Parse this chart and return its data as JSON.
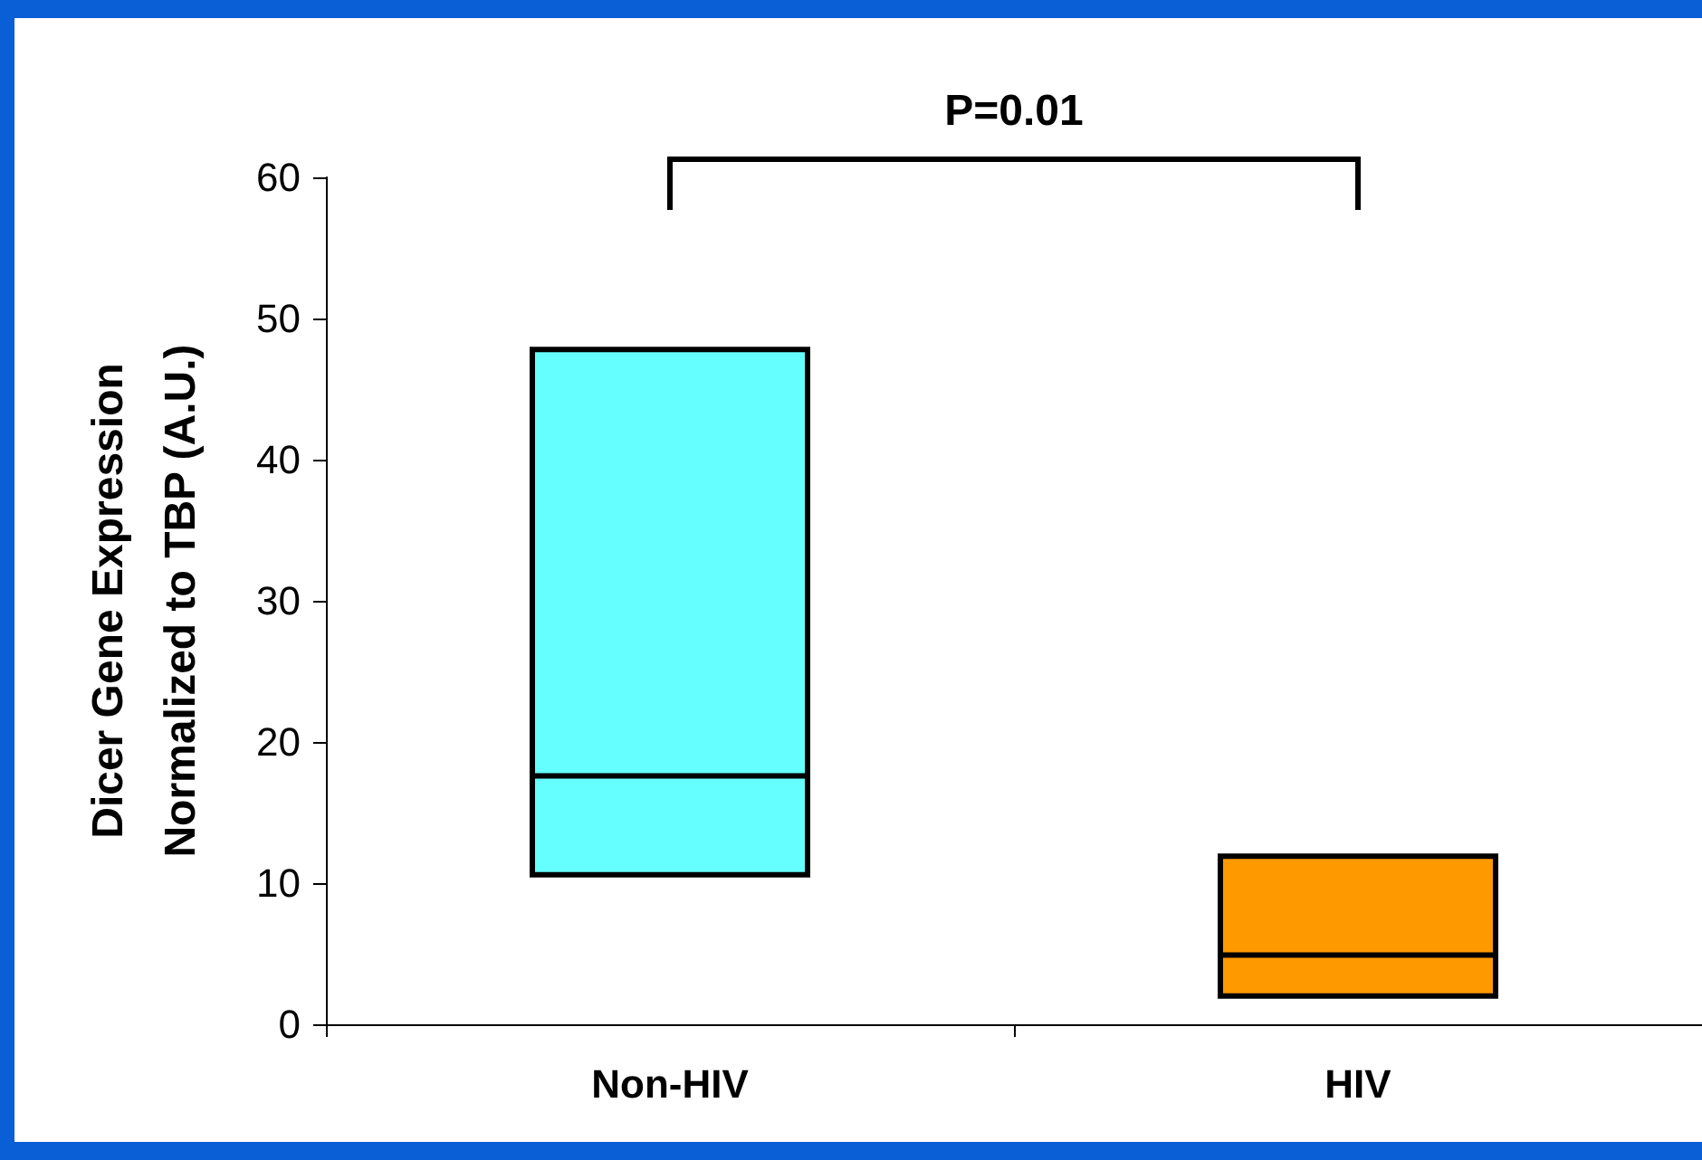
{
  "chart_data": {
    "type": "box",
    "ylabel": "Dicer Gene Expression\nNormalized to TBP (A.U.)",
    "categories": [
      "Non-HIV",
      "HIV"
    ],
    "boxes": [
      {
        "low": 10.6,
        "q1": 10.6,
        "median": 17.6,
        "q3": 47.8,
        "high": 47.8
      },
      {
        "low": 2.0,
        "q1": 2.0,
        "median": 4.9,
        "q3": 11.9,
        "high": 11.9
      }
    ],
    "colors": [
      "#66ffff",
      "#ff9900"
    ],
    "ylim": [
      0,
      60
    ],
    "yticks": [
      0,
      10,
      20,
      30,
      40,
      50,
      60
    ],
    "grid": false,
    "annotations": [
      "P=0.01"
    ]
  }
}
